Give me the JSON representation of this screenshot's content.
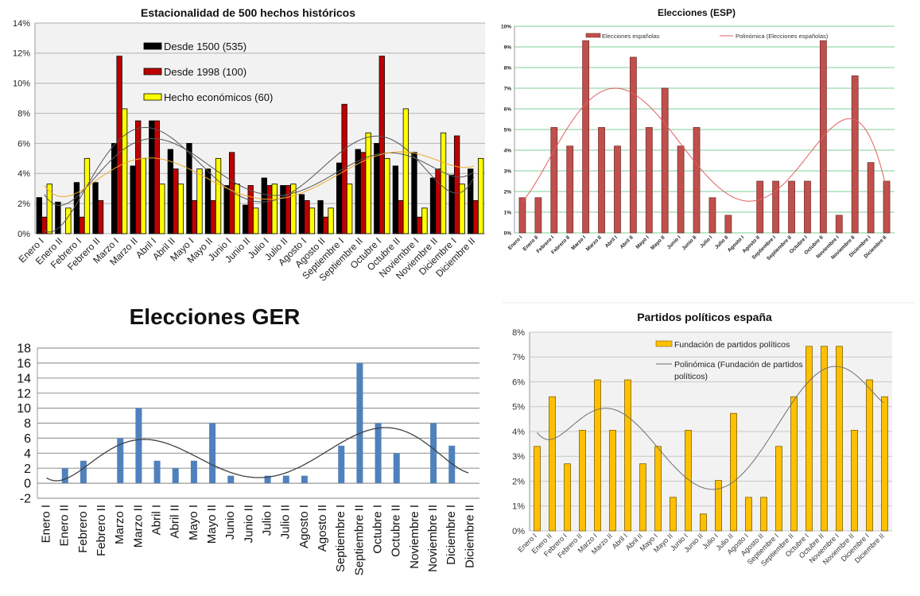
{
  "chart_data": [
    {
      "type": "bar",
      "title": "Estacionalidad de 500 hechos históricos",
      "categories": [
        "Enero I",
        "Enero II",
        "Febrero I",
        "Febrero II",
        "Marzo I",
        "Marzo II",
        "Abril I",
        "Abril II",
        "Mayo I",
        "Mayo II",
        "Junio I",
        "Junio II",
        "Julio I",
        "Julio II",
        "Agosto I",
        "Agosto II",
        "Septiembre I",
        "Septiembre II",
        "Octubre I",
        "Octubre II",
        "Noviembre I",
        "Noviembre II",
        "Diciembre I",
        "Diciembre II"
      ],
      "ylim": [
        0,
        14
      ],
      "yticks": [
        "0%",
        "2%",
        "4%",
        "6%",
        "8%",
        "10%",
        "12%",
        "14%"
      ],
      "grid": true,
      "legend": "top-left",
      "series": [
        {
          "name": "Desde 1500 (535)",
          "color": "#000000",
          "trendline": "polynomial",
          "values": [
            2.4,
            2.1,
            3.4,
            3.4,
            6.0,
            4.5,
            7.5,
            5.6,
            6.0,
            4.3,
            3.2,
            1.9,
            3.7,
            3.2,
            2.6,
            2.2,
            4.7,
            5.6,
            6.0,
            4.5,
            5.4,
            3.7,
            3.9,
            4.3
          ]
        },
        {
          "name": "Desde 1998 (100)",
          "color": "#c00000",
          "trendline": "polynomial",
          "values": [
            1.1,
            0,
            1.1,
            2.2,
            11.8,
            7.5,
            7.5,
            4.3,
            2.2,
            2.2,
            5.4,
            3.2,
            3.2,
            3.2,
            2.2,
            1.1,
            8.6,
            5.4,
            11.8,
            2.2,
            1.1,
            4.3,
            6.5,
            2.2
          ]
        },
        {
          "name": "Hecho económicos (60)",
          "color": "#ffff00",
          "trendline": "polynomial",
          "values": [
            3.3,
            1.7,
            5.0,
            0,
            8.3,
            5.0,
            3.3,
            3.3,
            4.3,
            5.0,
            3.3,
            1.7,
            3.3,
            3.3,
            1.7,
            1.7,
            3.3,
            6.7,
            5.0,
            8.3,
            1.7,
            6.7,
            3.3,
            5.0
          ]
        }
      ]
    },
    {
      "type": "bar",
      "title": "Elecciones (ESP)",
      "categories": [
        "Enero I",
        "Enero II",
        "Febrero I",
        "Febrero II",
        "Marzo I",
        "Marzo II",
        "Abril I",
        "Abril II",
        "Mayo I",
        "Mayo II",
        "Junio I",
        "Junio II",
        "Julio I",
        "Julio II",
        "Agosto I",
        "Agosto II",
        "Septiembre I",
        "Septiembre II",
        "Octubre I",
        "Octubre II",
        "Noviembre I",
        "Noviembre II",
        "Diciembre I",
        "Diciembre II"
      ],
      "ylim": [
        0,
        10
      ],
      "yticks": [
        "0%",
        "1%",
        "2%",
        "3%",
        "4%",
        "5%",
        "6%",
        "7%",
        "8%",
        "9%",
        "10%"
      ],
      "grid": true,
      "legend": "top",
      "series": [
        {
          "name": "Elecciones españolas",
          "color": "#c0504d",
          "values": [
            1.7,
            1.7,
            5.1,
            4.2,
            9.3,
            5.1,
            4.2,
            8.5,
            5.1,
            7.0,
            4.2,
            5.1,
            1.7,
            0.85,
            0,
            2.5,
            2.5,
            2.5,
            2.5,
            9.3,
            0.85,
            7.6,
            3.4,
            2.5
          ]
        }
      ],
      "trendline": {
        "name": "Polinómica (Elecciones españolas)",
        "color": "#e06060"
      }
    },
    {
      "type": "bar",
      "title": "Elecciones GER",
      "categories": [
        "Enero I",
        "Enero II",
        "Febrero I",
        "Febrero II",
        "Marzo I",
        "Marzo II",
        "Abril I",
        "Abril II",
        "Mayo I",
        "Mayo II",
        "Junio I",
        "Junio II",
        "Julio I",
        "Julio II",
        "Agosto I",
        "Agosto II",
        "Septiembre I",
        "Septiembre II",
        "Octubre I",
        "Octubre II",
        "Noviembre I",
        "Noviembre II",
        "Diciembre I",
        "Diciembre II"
      ],
      "ylim": [
        -2,
        18
      ],
      "yticks": [
        "-2",
        "0",
        "2",
        "4",
        "6",
        "8",
        "10",
        "12",
        "14",
        "16",
        "18"
      ],
      "grid": true,
      "series": [
        {
          "color": "#4f81bd",
          "values": [
            0,
            2,
            3,
            0,
            6,
            10,
            3,
            2,
            3,
            8,
            1,
            0,
            1,
            1,
            1,
            0,
            5,
            16,
            8,
            4,
            0,
            8,
            5,
            0
          ]
        }
      ],
      "trendline": {
        "color": "#404040"
      }
    },
    {
      "type": "bar",
      "title": "Partidos políticos españa",
      "categories": [
        "Enero I",
        "Enero II",
        "Febrero I",
        "Febrero II",
        "Marzo I",
        "Marzo II",
        "Abril I",
        "Abril II",
        "Mayo I",
        "Mayo II",
        "Junio I",
        "Junio II",
        "Julio I",
        "Julio II",
        "Agosto I",
        "Agosto II",
        "Septiembre I",
        "Septiembre II",
        "Octubre I",
        "Octubre II",
        "Noviembre I",
        "Noviembre II",
        "Diciembre I",
        "Diciembre II"
      ],
      "ylim": [
        0,
        8
      ],
      "yticks": [
        "0%",
        "1%",
        "2%",
        "3%",
        "4%",
        "5%",
        "6%",
        "7%",
        "8%"
      ],
      "grid": true,
      "legend": "top-right",
      "series": [
        {
          "name": "Fundación de partidos políticos",
          "color": "#ffc000",
          "values": [
            3.4,
            5.4,
            2.7,
            4.05,
            6.08,
            4.05,
            6.08,
            2.7,
            3.4,
            1.35,
            4.05,
            0.68,
            2.03,
            4.73,
            1.35,
            1.35,
            3.4,
            5.4,
            7.43,
            7.43,
            7.43,
            4.05,
            6.08,
            5.4
          ]
        }
      ],
      "trendline": {
        "name_line1": "Polinómica (Fundación de partidos",
        "name_line2": "políticos)",
        "color": "#707070"
      }
    }
  ]
}
